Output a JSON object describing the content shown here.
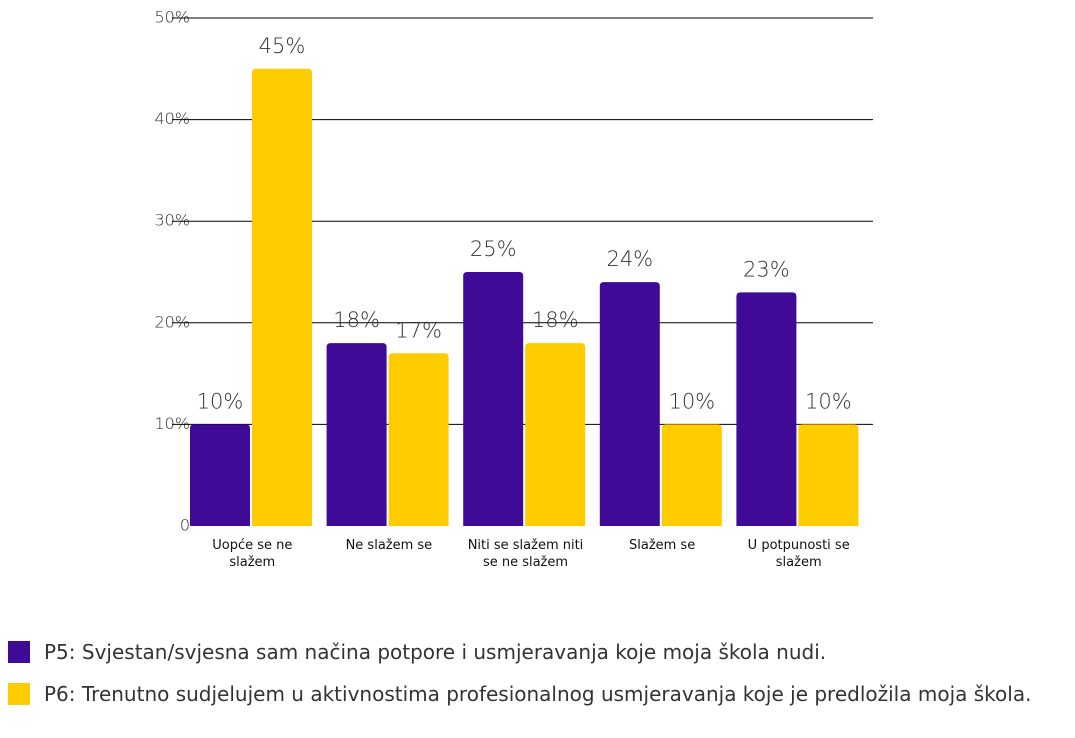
{
  "chart_data": {
    "type": "bar",
    "categories": [
      "Uopće se ne slažem",
      "Ne slažem se",
      "Niti se slažem niti se ne slažem",
      "Slažem se",
      "U potpunosti se slažem"
    ],
    "series": [
      {
        "name": "P5: Svjestan/svjesna sam načina potpore i usmjeravanja koje moja škola nudi.",
        "color": "#3f0a96",
        "values": [
          10,
          18,
          25,
          24,
          23
        ],
        "value_labels": [
          "10%",
          "18%",
          "25%",
          "24%",
          "23%"
        ]
      },
      {
        "name": "P6: Trenutno sudjelujem u aktivnostima profesionalnog usmjeravanja koje je predložila moja škola.",
        "color": "#ffcc00",
        "values": [
          45,
          17,
          18,
          10,
          10
        ],
        "value_labels": [
          "45%",
          "17%",
          "18%",
          "10%",
          "10%"
        ]
      }
    ],
    "ylim": [
      0,
      50
    ],
    "yticks": [
      0,
      {
        "value": 10,
        "label": "10%"
      },
      {
        "value": 20,
        "label": "20%"
      },
      {
        "value": 30,
        "label": "30%"
      },
      {
        "value": 40,
        "label": "40%"
      },
      {
        "value": 50,
        "label": "50%"
      }
    ],
    "grid": true
  }
}
